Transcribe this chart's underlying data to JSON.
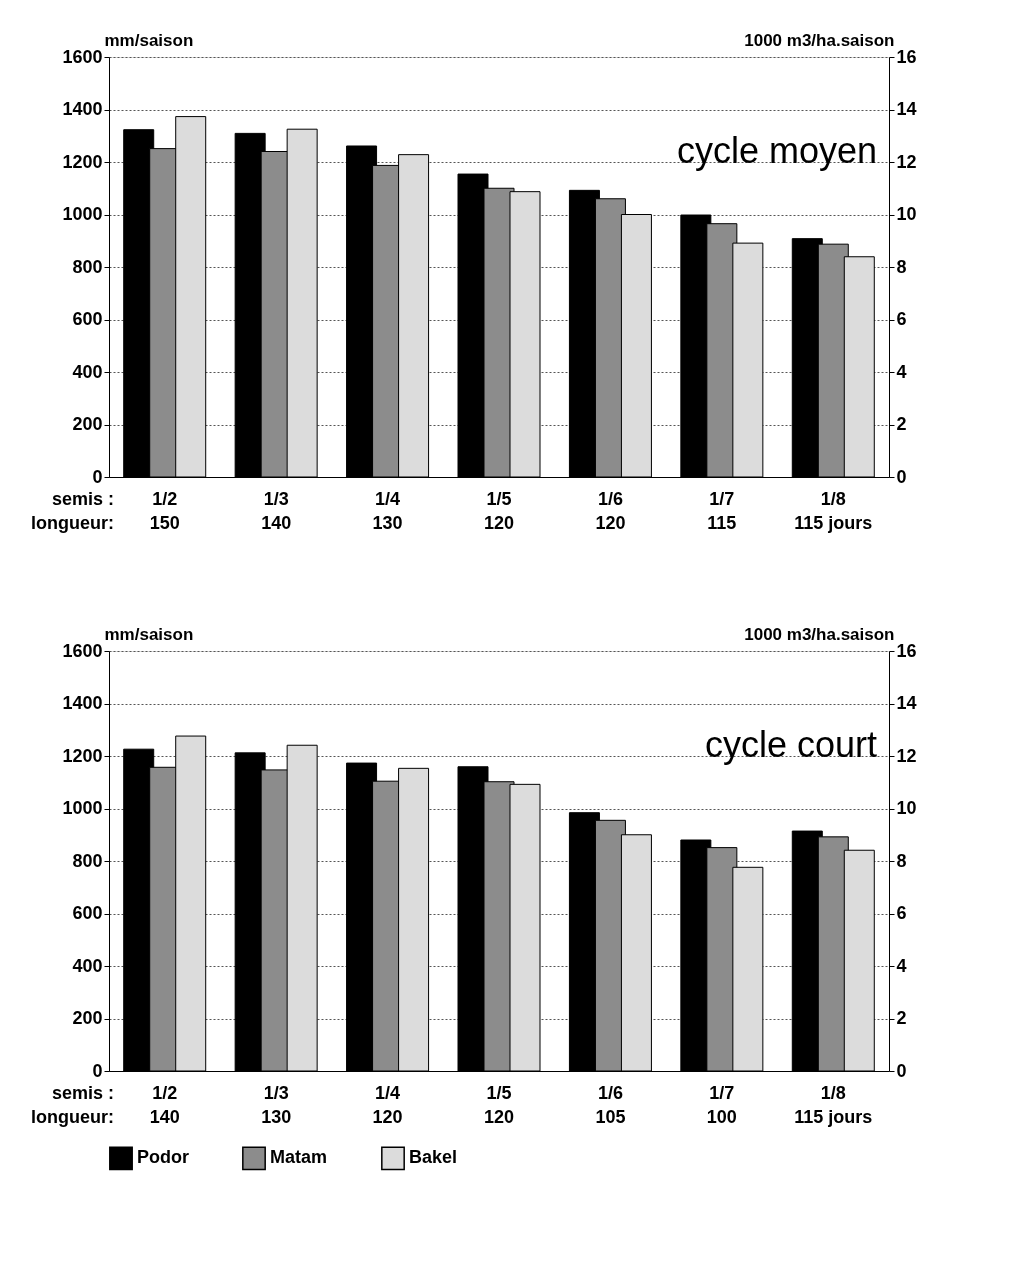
{
  "chart_data": [
    {
      "type": "bar",
      "categories": [
        "1/2\n150",
        "1/3\n140",
        "1/4\n130",
        "1/5\n120",
        "1/6\n120",
        "1/7\n115",
        "1/8\n115 jours"
      ],
      "series": [
        {
          "color": "#000000",
          "values": [
            1323,
            1309,
            1261,
            1154,
            1092,
            998,
            908
          ]
        },
        {
          "color": "#8c8c8c",
          "values": [
            1251,
            1240,
            1187,
            1100,
            1060,
            965,
            887
          ]
        },
        {
          "color": "#dcdcdc",
          "values": [
            1373,
            1325,
            1228,
            1087,
            1000,
            891,
            839
          ]
        }
      ],
      "ylabel": "mm/saison",
      "y2label": "1000 m3/ha.saison",
      "ylim": [
        0,
        1600
      ],
      "yticks": [
        0,
        200,
        400,
        600,
        800,
        1000,
        1200,
        1400,
        1600
      ],
      "y2lim": [
        0,
        16
      ],
      "y2ticks": [
        0,
        2,
        4,
        6,
        8,
        10,
        12,
        14,
        16
      ],
      "grid": "y",
      "legend": false,
      "annotations": [
        "cycle moyen",
        "semis :",
        "longueur:"
      ]
    },
    {
      "type": "bar",
      "categories": [
        "1/2\n140",
        "1/3\n130",
        "1/4\n120",
        "1/5\n120",
        "1/6\n105",
        "1/7\n100",
        "1/8\n115 jours"
      ],
      "series": [
        {
          "name": "Podor",
          "color": "#000000",
          "values": [
            1226,
            1212,
            1173,
            1159,
            984,
            880,
            914
          ]
        },
        {
          "name": "Matam",
          "color": "#8c8c8c",
          "values": [
            1157,
            1147,
            1104,
            1102,
            955,
            851,
            892
          ]
        },
        {
          "name": "Bakel",
          "color": "#dcdcdc",
          "values": [
            1276,
            1241,
            1153,
            1092,
            900,
            776,
            841
          ]
        }
      ],
      "ylabel": "mm/saison",
      "y2label": "1000 m3/ha.saison",
      "ylim": [
        0,
        1600
      ],
      "yticks": [
        0,
        200,
        400,
        600,
        800,
        1000,
        1200,
        1400,
        1600
      ],
      "y2lim": [
        0,
        16
      ],
      "y2ticks": [
        0,
        2,
        4,
        6,
        8,
        10,
        12,
        14,
        16
      ],
      "grid": "y",
      "legend": "bottom",
      "annotations": [
        "cycle court",
        "semis :",
        "longueur:"
      ]
    }
  ]
}
